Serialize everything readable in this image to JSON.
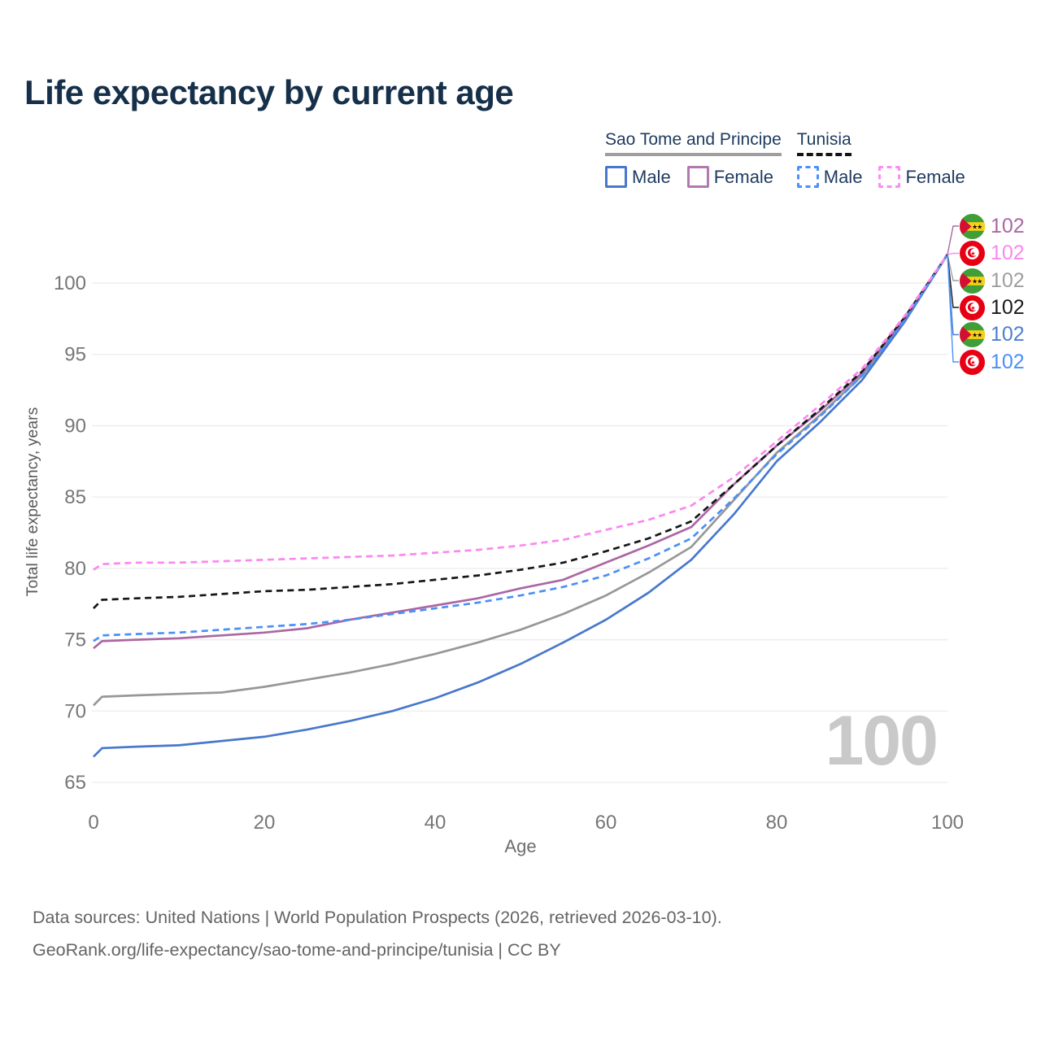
{
  "title": "Life expectancy by current age",
  "legend": {
    "groups": [
      {
        "name": "Sao Tome and Principe",
        "line_style": "solid",
        "underline_color": "#9e9e9e",
        "items": [
          {
            "label": "Male",
            "color": "#4778cc",
            "dashed": false
          },
          {
            "label": "Female",
            "color": "#b279ae",
            "dashed": false
          }
        ]
      },
      {
        "name": "Tunisia",
        "line_style": "dashed",
        "underline_color": "#141414",
        "items": [
          {
            "label": "Male",
            "color": "#4a90f7",
            "dashed": true
          },
          {
            "label": "Female",
            "color": "#fc8df1",
            "dashed": true
          }
        ]
      }
    ]
  },
  "watermark": "100",
  "chart_data": {
    "type": "line",
    "title": "Life expectancy by current age",
    "xlabel": "Age",
    "ylabel": "Total life expectancy, years",
    "xlim": [
      0,
      100
    ],
    "ylim": [
      63.5,
      102
    ],
    "x_ticks": [
      0,
      20,
      40,
      60,
      80,
      100
    ],
    "y_ticks": [
      65,
      70,
      75,
      80,
      85,
      90,
      95,
      100
    ],
    "grid": "horizontal",
    "x": [
      0,
      1,
      5,
      10,
      15,
      20,
      25,
      30,
      35,
      40,
      45,
      50,
      55,
      60,
      65,
      70,
      75,
      80,
      85,
      90,
      95,
      100
    ],
    "series": [
      {
        "name": "Sao Tome and Principe — Total",
        "country": "Sao Tome and Principe",
        "sex": "total",
        "color": "#979797",
        "dashed": false,
        "values": [
          70.4,
          71.0,
          71.1,
          71.2,
          71.3,
          71.7,
          72.2,
          72.7,
          73.3,
          74.0,
          74.8,
          75.7,
          76.8,
          78.1,
          79.7,
          81.5,
          84.8,
          88.1,
          90.7,
          93.5,
          97.4,
          102
        ]
      },
      {
        "name": "Sao Tome and Principe — Male",
        "country": "Sao Tome and Principe",
        "sex": "male",
        "color": "#4778cc",
        "dashed": false,
        "values": [
          66.8,
          67.4,
          67.5,
          67.6,
          67.9,
          68.2,
          68.7,
          69.3,
          70.0,
          70.9,
          72.0,
          73.3,
          74.8,
          76.4,
          78.3,
          80.6,
          83.8,
          87.5,
          90.2,
          93.2,
          97.3,
          102
        ]
      },
      {
        "name": "Sao Tome and Principe — Female",
        "country": "Sao Tome and Principe",
        "sex": "female",
        "color": "#ab67a4",
        "dashed": false,
        "values": [
          74.4,
          74.9,
          75.0,
          75.1,
          75.3,
          75.5,
          75.8,
          76.4,
          76.9,
          77.4,
          77.9,
          78.6,
          79.2,
          80.4,
          81.6,
          82.9,
          85.9,
          88.6,
          91.0,
          93.7,
          97.5,
          102
        ]
      },
      {
        "name": "Tunisia — Total",
        "country": "Tunisia",
        "sex": "total",
        "color": "#161616",
        "dashed": true,
        "values": [
          77.2,
          77.8,
          77.9,
          78.0,
          78.2,
          78.4,
          78.5,
          78.7,
          78.9,
          79.2,
          79.5,
          79.9,
          80.4,
          81.2,
          82.1,
          83.3,
          85.9,
          88.6,
          91.1,
          93.8,
          97.6,
          102
        ]
      },
      {
        "name": "Tunisia — Male",
        "country": "Tunisia",
        "sex": "male",
        "color": "#4a90f7",
        "dashed": true,
        "values": [
          74.9,
          75.3,
          75.4,
          75.5,
          75.7,
          75.9,
          76.1,
          76.4,
          76.8,
          77.2,
          77.6,
          78.1,
          78.7,
          79.5,
          80.7,
          82.1,
          84.9,
          88.0,
          90.6,
          93.5,
          97.4,
          102
        ]
      },
      {
        "name": "Tunisia — Female",
        "country": "Tunisia",
        "sex": "female",
        "color": "#fc87ef",
        "dashed": true,
        "values": [
          79.9,
          80.3,
          80.4,
          80.4,
          80.5,
          80.6,
          80.7,
          80.8,
          80.9,
          81.1,
          81.3,
          81.6,
          82.0,
          82.7,
          83.4,
          84.4,
          86.4,
          88.9,
          91.4,
          94.0,
          97.7,
          102
        ]
      }
    ],
    "end_labels": [
      {
        "flag": "sao-tome-and-principe",
        "value": "102",
        "color": "#ab67a4",
        "series": "Sao Tome and Principe — Female"
      },
      {
        "flag": "tunisia",
        "value": "102",
        "color": "#fc87ef",
        "series": "Tunisia — Female"
      },
      {
        "flag": "sao-tome-and-principe",
        "value": "102",
        "color": "#9e9e9e",
        "series": "Sao Tome and Principe — Total"
      },
      {
        "flag": "tunisia",
        "value": "102",
        "color": "#1a1a1a",
        "series": "Tunisia — Total"
      },
      {
        "flag": "sao-tome-and-principe",
        "value": "102",
        "color": "#4d7fd3",
        "series": "Sao Tome and Principe — Male"
      },
      {
        "flag": "tunisia",
        "value": "102",
        "color": "#4a90f7",
        "series": "Tunisia — Male"
      }
    ],
    "legend_position": "top-right"
  },
  "footer": {
    "line1": "Data sources: United Nations | World Population Prospects (2026, retrieved 2026-03-10).",
    "line2": "GeoRank.org/life-expectancy/sao-tome-and-principe/tunisia | CC BY"
  }
}
